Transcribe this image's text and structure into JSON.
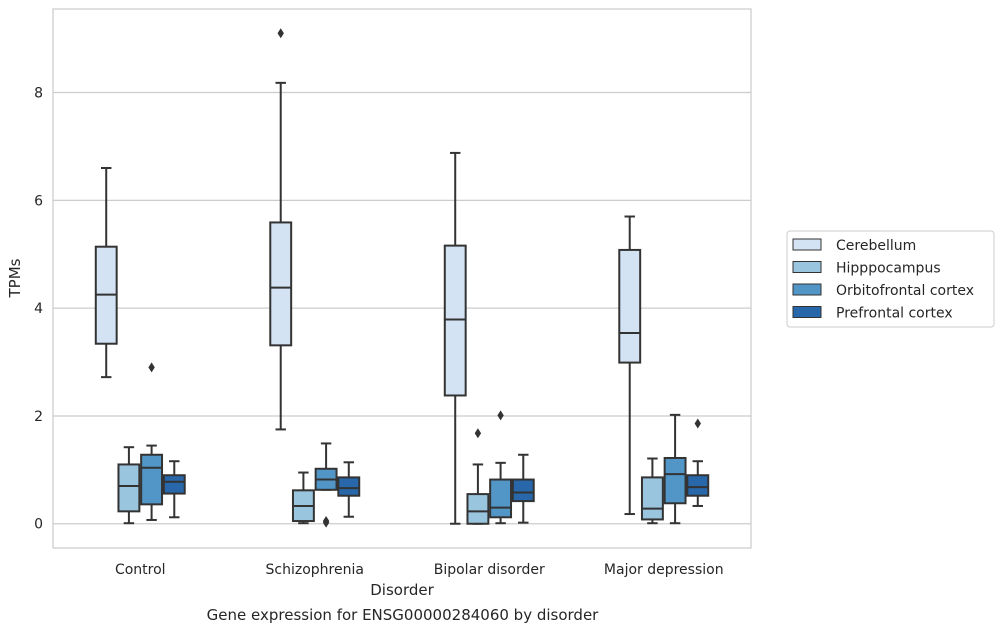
{
  "caption": "Gene expression for ENSG00000284060 by disorder",
  "chart_data": {
    "type": "boxplot",
    "title": "",
    "xlabel": "Disorder",
    "ylabel": "TPMs",
    "ylim": [
      -0.45,
      9.55
    ],
    "yticks": [
      0,
      2,
      4,
      6,
      8
    ],
    "grid": "horizontal",
    "legend_position": "right",
    "categories": [
      "Control",
      "Schizophrenia",
      "Bipolar disorder",
      "Major depression"
    ],
    "series": [
      {
        "name": "Cerebellum",
        "color": "#d4e3f3",
        "boxes": [
          {
            "whisker_low": 2.72,
            "q1": 3.34,
            "median": 4.25,
            "q3": 5.14,
            "whisker_high": 6.6,
            "outliers": []
          },
          {
            "whisker_low": 1.75,
            "q1": 3.31,
            "median": 4.38,
            "q3": 5.59,
            "whisker_high": 8.18,
            "outliers": [
              9.1
            ]
          },
          {
            "whisker_low": 0.0,
            "q1": 2.38,
            "median": 3.79,
            "q3": 5.16,
            "whisker_high": 6.88,
            "outliers": []
          },
          {
            "whisker_low": 0.18,
            "q1": 2.99,
            "median": 3.54,
            "q3": 5.08,
            "whisker_high": 5.7,
            "outliers": []
          }
        ]
      },
      {
        "name": "Hipppocampus",
        "color": "#9ac5df",
        "boxes": [
          {
            "whisker_low": 0.01,
            "q1": 0.23,
            "median": 0.7,
            "q3": 1.1,
            "whisker_high": 1.42,
            "outliers": []
          },
          {
            "whisker_low": 0.01,
            "q1": 0.05,
            "median": 0.33,
            "q3": 0.62,
            "whisker_high": 0.95,
            "outliers": []
          },
          {
            "whisker_low": 0.0,
            "q1": 0.0,
            "median": 0.23,
            "q3": 0.55,
            "whisker_high": 1.1,
            "outliers": [
              1.68
            ]
          },
          {
            "whisker_low": 0.01,
            "q1": 0.08,
            "median": 0.28,
            "q3": 0.86,
            "whisker_high": 1.21,
            "outliers": []
          }
        ]
      },
      {
        "name": "Orbitofrontal cortex",
        "color": "#5196c7",
        "boxes": [
          {
            "whisker_low": 0.07,
            "q1": 0.36,
            "median": 1.04,
            "q3": 1.28,
            "whisker_high": 1.45,
            "outliers": [
              2.9
            ]
          },
          {
            "whisker_low": 0.63,
            "q1": 0.63,
            "median": 0.82,
            "q3": 1.02,
            "whisker_high": 1.49,
            "outliers": [
              0.02,
              0.05
            ]
          },
          {
            "whisker_low": 0.01,
            "q1": 0.12,
            "median": 0.3,
            "q3": 0.82,
            "whisker_high": 1.13,
            "outliers": [
              2.01
            ]
          },
          {
            "whisker_low": 0.01,
            "q1": 0.38,
            "median": 0.92,
            "q3": 1.22,
            "whisker_high": 2.02,
            "outliers": []
          }
        ]
      },
      {
        "name": "Prefrontal cortex",
        "color": "#2767aa",
        "boxes": [
          {
            "whisker_low": 0.12,
            "q1": 0.56,
            "median": 0.78,
            "q3": 0.9,
            "whisker_high": 1.16,
            "outliers": []
          },
          {
            "whisker_low": 0.13,
            "q1": 0.52,
            "median": 0.66,
            "q3": 0.86,
            "whisker_high": 1.14,
            "outliers": []
          },
          {
            "whisker_low": 0.02,
            "q1": 0.42,
            "median": 0.58,
            "q3": 0.82,
            "whisker_high": 1.28,
            "outliers": []
          },
          {
            "whisker_low": 0.33,
            "q1": 0.52,
            "median": 0.68,
            "q3": 0.9,
            "whisker_high": 1.16,
            "outliers": [
              1.86
            ]
          }
        ]
      }
    ]
  }
}
